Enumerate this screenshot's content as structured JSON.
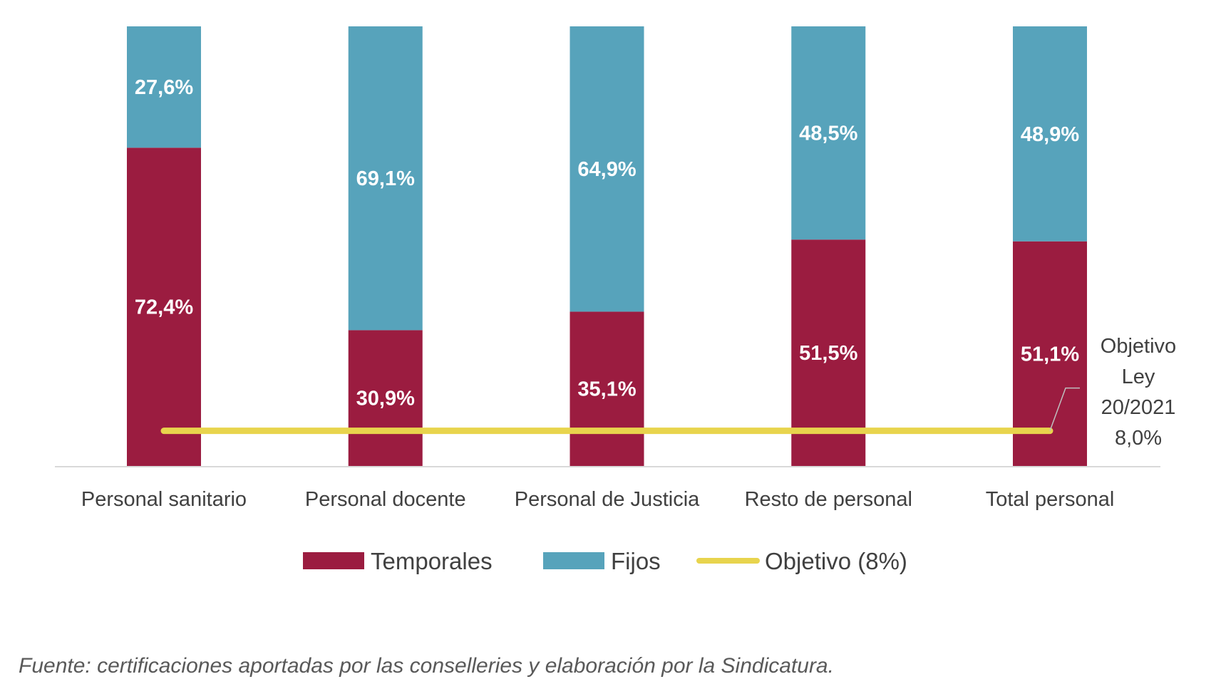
{
  "chart_data": {
    "type": "bar",
    "stacked": true,
    "categories": [
      "Personal sanitario",
      "Personal docente",
      "Personal de Justicia",
      "Resto de personal",
      "Total personal"
    ],
    "series": [
      {
        "name": "Temporales",
        "values": [
          72.4,
          30.9,
          35.1,
          51.5,
          51.1
        ],
        "labels": [
          "72,4%",
          "30,9%",
          "35,1%",
          "51,5%",
          "51,1%"
        ],
        "color": "#9b1c40"
      },
      {
        "name": "Fijos",
        "values": [
          27.6,
          69.1,
          64.9,
          48.5,
          48.9
        ],
        "labels": [
          "27,6%",
          "69,1%",
          "64,9%",
          "48,5%",
          "48,9%"
        ],
        "color": "#57a3bb"
      }
    ],
    "line": {
      "name": "Objetivo (8%)",
      "value": 8.0,
      "color": "#e8d44d"
    },
    "annotation": [
      "Objetivo",
      "Ley",
      "20/2021",
      "8,0%"
    ],
    "ylim": [
      0,
      100
    ],
    "grid": false,
    "legend_position": "bottom"
  },
  "footer": "Fuente: certificaciones aportadas por las conselleries y elaboración por la Sindicatura."
}
